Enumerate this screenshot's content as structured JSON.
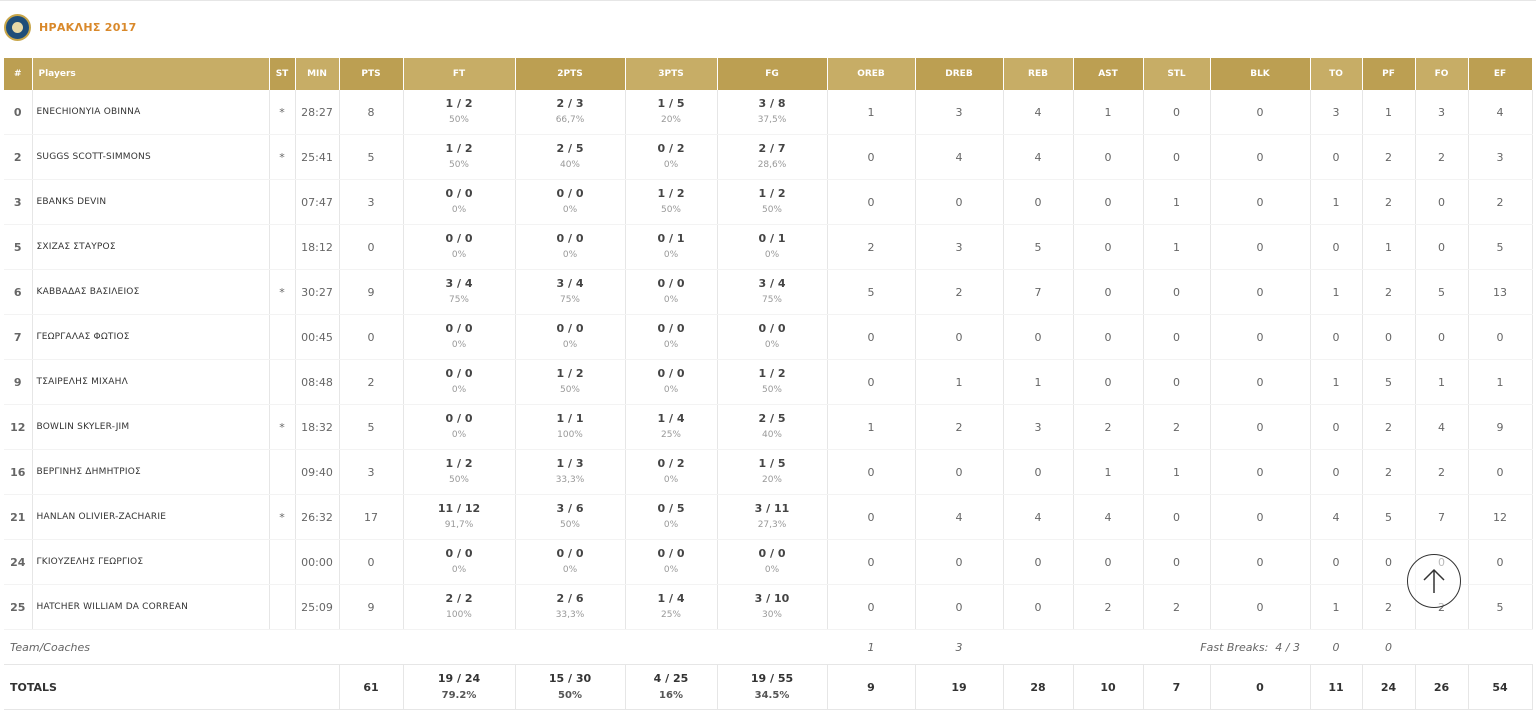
{
  "team": {
    "name": "ΗΡΑΚΛΗΣ 2017",
    "logo_icon": "team-logo-icon"
  },
  "headers": [
    "#",
    "Players",
    "ST",
    "MIN",
    "PTS",
    "FT",
    "2PTS",
    "3PTS",
    "FG",
    "OREB",
    "DREB",
    "REB",
    "AST",
    "STL",
    "BLK",
    "TO",
    "PF",
    "FO",
    "EF"
  ],
  "players": [
    {
      "num": "0",
      "name": "ENECHIONYIA OBINNA",
      "st": "*",
      "min": "28:27",
      "pts": "8",
      "ft": "1 / 2",
      "ft_pct": "50%",
      "p2": "2 / 3",
      "p2_pct": "66,7%",
      "p3": "1 / 5",
      "p3_pct": "20%",
      "fg": "3 / 8",
      "fg_pct": "37,5%",
      "oreb": "1",
      "dreb": "3",
      "reb": "4",
      "ast": "1",
      "stl": "0",
      "blk": "0",
      "to": "3",
      "pf": "1",
      "fo": "3",
      "ef": "4"
    },
    {
      "num": "2",
      "name": "SUGGS SCOTT-SIMMONS",
      "st": "*",
      "min": "25:41",
      "pts": "5",
      "ft": "1 / 2",
      "ft_pct": "50%",
      "p2": "2 / 5",
      "p2_pct": "40%",
      "p3": "0 / 2",
      "p3_pct": "0%",
      "fg": "2 / 7",
      "fg_pct": "28,6%",
      "oreb": "0",
      "dreb": "4",
      "reb": "4",
      "ast": "0",
      "stl": "0",
      "blk": "0",
      "to": "0",
      "pf": "2",
      "fo": "2",
      "ef": "3"
    },
    {
      "num": "3",
      "name": "EBANKS DEVIN",
      "st": "",
      "min": "07:47",
      "pts": "3",
      "ft": "0 / 0",
      "ft_pct": "0%",
      "p2": "0 / 0",
      "p2_pct": "0%",
      "p3": "1 / 2",
      "p3_pct": "50%",
      "fg": "1 / 2",
      "fg_pct": "50%",
      "oreb": "0",
      "dreb": "0",
      "reb": "0",
      "ast": "0",
      "stl": "1",
      "blk": "0",
      "to": "1",
      "pf": "2",
      "fo": "0",
      "ef": "2"
    },
    {
      "num": "5",
      "name": "ΣΧΙΖΑΣ ΣΤΑΥΡΟΣ",
      "st": "",
      "min": "18:12",
      "pts": "0",
      "ft": "0 / 0",
      "ft_pct": "0%",
      "p2": "0 / 0",
      "p2_pct": "0%",
      "p3": "0 / 1",
      "p3_pct": "0%",
      "fg": "0 / 1",
      "fg_pct": "0%",
      "oreb": "2",
      "dreb": "3",
      "reb": "5",
      "ast": "0",
      "stl": "1",
      "blk": "0",
      "to": "0",
      "pf": "1",
      "fo": "0",
      "ef": "5"
    },
    {
      "num": "6",
      "name": "ΚΑΒΒΑΔΑΣ ΒΑΣΙΛΕΙΟΣ",
      "st": "*",
      "min": "30:27",
      "pts": "9",
      "ft": "3 / 4",
      "ft_pct": "75%",
      "p2": "3 / 4",
      "p2_pct": "75%",
      "p3": "0 / 0",
      "p3_pct": "0%",
      "fg": "3 / 4",
      "fg_pct": "75%",
      "oreb": "5",
      "dreb": "2",
      "reb": "7",
      "ast": "0",
      "stl": "0",
      "blk": "0",
      "to": "1",
      "pf": "2",
      "fo": "5",
      "ef": "13"
    },
    {
      "num": "7",
      "name": "ΓΕΩΡΓΑΛΑΣ ΦΩΤΙΟΣ",
      "st": "",
      "min": "00:45",
      "pts": "0",
      "ft": "0 / 0",
      "ft_pct": "0%",
      "p2": "0 / 0",
      "p2_pct": "0%",
      "p3": "0 / 0",
      "p3_pct": "0%",
      "fg": "0 / 0",
      "fg_pct": "0%",
      "oreb": "0",
      "dreb": "0",
      "reb": "0",
      "ast": "0",
      "stl": "0",
      "blk": "0",
      "to": "0",
      "pf": "0",
      "fo": "0",
      "ef": "0"
    },
    {
      "num": "9",
      "name": "ΤΣΑΙΡΕΛΗΣ ΜΙΧΑΗΛ",
      "st": "",
      "min": "08:48",
      "pts": "2",
      "ft": "0 / 0",
      "ft_pct": "0%",
      "p2": "1 / 2",
      "p2_pct": "50%",
      "p3": "0 / 0",
      "p3_pct": "0%",
      "fg": "1 / 2",
      "fg_pct": "50%",
      "oreb": "0",
      "dreb": "1",
      "reb": "1",
      "ast": "0",
      "stl": "0",
      "blk": "0",
      "to": "1",
      "pf": "5",
      "fo": "1",
      "ef": "1"
    },
    {
      "num": "12",
      "name": "BOWLIN SKYLER-JIM",
      "st": "*",
      "min": "18:32",
      "pts": "5",
      "ft": "0 / 0",
      "ft_pct": "0%",
      "p2": "1 / 1",
      "p2_pct": "100%",
      "p3": "1 / 4",
      "p3_pct": "25%",
      "fg": "2 / 5",
      "fg_pct": "40%",
      "oreb": "1",
      "dreb": "2",
      "reb": "3",
      "ast": "2",
      "stl": "2",
      "blk": "0",
      "to": "0",
      "pf": "2",
      "fo": "4",
      "ef": "9"
    },
    {
      "num": "16",
      "name": "ΒΕΡΓΙΝΗΣ ΔΗΜΗΤΡΙΟΣ",
      "st": "",
      "min": "09:40",
      "pts": "3",
      "ft": "1 / 2",
      "ft_pct": "50%",
      "p2": "1 / 3",
      "p2_pct": "33,3%",
      "p3": "0 / 2",
      "p3_pct": "0%",
      "fg": "1 / 5",
      "fg_pct": "20%",
      "oreb": "0",
      "dreb": "0",
      "reb": "0",
      "ast": "1",
      "stl": "1",
      "blk": "0",
      "to": "0",
      "pf": "2",
      "fo": "2",
      "ef": "0"
    },
    {
      "num": "21",
      "name": "HANLAN OLIVIER-ZACHARIE",
      "st": "*",
      "min": "26:32",
      "pts": "17",
      "ft": "11 / 12",
      "ft_pct": "91,7%",
      "p2": "3 / 6",
      "p2_pct": "50%",
      "p3": "0 / 5",
      "p3_pct": "0%",
      "fg": "3 / 11",
      "fg_pct": "27,3%",
      "oreb": "0",
      "dreb": "4",
      "reb": "4",
      "ast": "4",
      "stl": "0",
      "blk": "0",
      "to": "4",
      "pf": "5",
      "fo": "7",
      "ef": "12"
    },
    {
      "num": "24",
      "name": "ΓΚΙΟΥΖΕΛΗΣ ΓΕΩΡΓΙΟΣ",
      "st": "",
      "min": "00:00",
      "pts": "0",
      "ft": "0 / 0",
      "ft_pct": "0%",
      "p2": "0 / 0",
      "p2_pct": "0%",
      "p3": "0 / 0",
      "p3_pct": "0%",
      "fg": "0 / 0",
      "fg_pct": "0%",
      "oreb": "0",
      "dreb": "0",
      "reb": "0",
      "ast": "0",
      "stl": "0",
      "blk": "0",
      "to": "0",
      "pf": "0",
      "fo": "0",
      "ef": "0"
    },
    {
      "num": "25",
      "name": "HATCHER WILLIAM DA CORREAN",
      "st": "",
      "min": "25:09",
      "pts": "9",
      "ft": "2 / 2",
      "ft_pct": "100%",
      "p2": "2 / 6",
      "p2_pct": "33,3%",
      "p3": "1 / 4",
      "p3_pct": "25%",
      "fg": "3 / 10",
      "fg_pct": "30%",
      "oreb": "0",
      "dreb": "0",
      "reb": "0",
      "ast": "2",
      "stl": "2",
      "blk": "0",
      "to": "1",
      "pf": "2",
      "fo": "2",
      "ef": "5"
    }
  ],
  "team_row": {
    "label": "Team/Coaches",
    "oreb": "1",
    "dreb": "3",
    "fast_breaks_label": "Fast Breaks:",
    "fast_breaks_value": "4 / 3",
    "to": "0",
    "pf": "0"
  },
  "totals": {
    "label": "TOTALS",
    "pts": "61",
    "ft": "19 / 24",
    "ft_pct": "79.2%",
    "p2": "15 / 30",
    "p2_pct": "50%",
    "p3": "4 / 25",
    "p3_pct": "16%",
    "fg": "19 / 55",
    "fg_pct": "34.5%",
    "oreb": "9",
    "dreb": "19",
    "reb": "28",
    "ast": "10",
    "stl": "7",
    "blk": "0",
    "to": "11",
    "pf": "24",
    "fo": "26",
    "ef": "54"
  },
  "scroll_top": {
    "icon": "arrow-up-icon"
  },
  "colors": {
    "header_gold": "#bc9f52",
    "header_gold_alt": "#c7ad66",
    "team_name": "#d9892b"
  }
}
